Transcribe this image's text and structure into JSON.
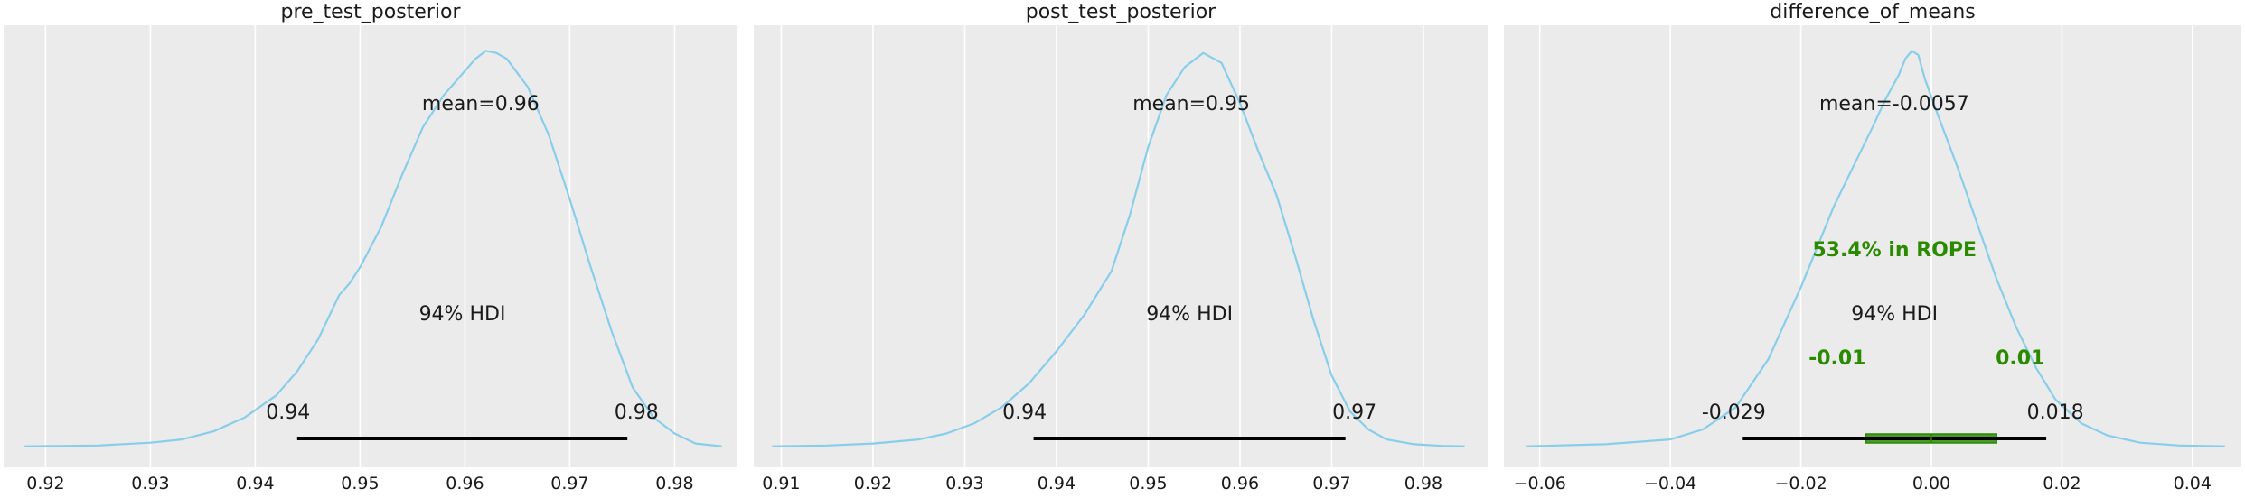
{
  "colors": {
    "panel_bg": "#ebebeb",
    "grid": "#ffffff",
    "density": "#87ceeb",
    "hdi": "#000000",
    "rope": "#2a8a00",
    "rope_fill": "#4a9a2a",
    "text": "#1a1a1a"
  },
  "chart_data": [
    {
      "type": "area",
      "title": "pre_test_posterior",
      "xlim": [
        0.916,
        0.986
      ],
      "xticks": [
        0.92,
        0.93,
        0.94,
        0.95,
        0.96,
        0.97,
        0.98
      ],
      "tick_labels": [
        "0.92",
        "0.93",
        "0.94",
        "0.95",
        "0.96",
        "0.97",
        "0.98"
      ],
      "grid": true,
      "density_x": [
        0.918,
        0.925,
        0.93,
        0.933,
        0.936,
        0.939,
        0.942,
        0.944,
        0.946,
        0.948,
        0.949,
        0.95,
        0.952,
        0.954,
        0.956,
        0.958,
        0.96,
        0.961,
        0.962,
        0.963,
        0.964,
        0.966,
        0.968,
        0.97,
        0.972,
        0.974,
        0.976,
        0.978,
        0.98,
        0.982,
        0.9845
      ],
      "density_y": [
        0.003,
        0.005,
        0.012,
        0.02,
        0.04,
        0.075,
        0.13,
        0.19,
        0.27,
        0.38,
        0.41,
        0.45,
        0.55,
        0.68,
        0.8,
        0.88,
        0.94,
        0.97,
        0.99,
        0.985,
        0.97,
        0.9,
        0.78,
        0.62,
        0.45,
        0.29,
        0.15,
        0.075,
        0.035,
        0.01,
        0.003
      ],
      "mean_label": "mean=0.96",
      "mean_label_x": 0.9615,
      "hdi": [
        0.944,
        0.9755
      ],
      "hdi_label": "94% HDI",
      "hdi_labels": [
        "0.94",
        "0.98"
      ]
    },
    {
      "type": "area",
      "title": "post_test_posterior",
      "xlim": [
        0.907,
        0.987
      ],
      "xticks": [
        0.91,
        0.92,
        0.93,
        0.94,
        0.95,
        0.96,
        0.97,
        0.98
      ],
      "tick_labels": [
        "0.91",
        "0.92",
        "0.93",
        "0.94",
        "0.95",
        "0.96",
        "0.97",
        "0.98"
      ],
      "grid": true,
      "density_x": [
        0.909,
        0.915,
        0.92,
        0.925,
        0.928,
        0.931,
        0.934,
        0.937,
        0.94,
        0.943,
        0.946,
        0.948,
        0.95,
        0.952,
        0.954,
        0.956,
        0.958,
        0.96,
        0.962,
        0.964,
        0.966,
        0.968,
        0.97,
        0.972,
        0.974,
        0.976,
        0.979,
        0.982,
        0.9845
      ],
      "density_y": [
        0.003,
        0.005,
        0.01,
        0.02,
        0.035,
        0.06,
        0.1,
        0.16,
        0.24,
        0.33,
        0.44,
        0.58,
        0.75,
        0.88,
        0.95,
        0.985,
        0.96,
        0.86,
        0.74,
        0.63,
        0.48,
        0.32,
        0.18,
        0.09,
        0.045,
        0.02,
        0.008,
        0.004,
        0.003
      ],
      "mean_label": "mean=0.95",
      "mean_label_x": 0.9547,
      "hdi": [
        0.9375,
        0.9715
      ],
      "hdi_label": "94% HDI",
      "hdi_labels": [
        "0.94",
        "0.97"
      ]
    },
    {
      "type": "area",
      "title": "difference_of_means",
      "xlim": [
        -0.0655,
        0.0475
      ],
      "xticks": [
        -0.06,
        -0.04,
        -0.02,
        0.0,
        0.02,
        0.04
      ],
      "tick_labels": [
        "−0.06",
        "−0.04",
        "−0.02",
        "0.00",
        "0.02",
        "0.04"
      ],
      "grid": true,
      "density_x": [
        -0.062,
        -0.05,
        -0.04,
        -0.035,
        -0.03,
        -0.025,
        -0.02,
        -0.015,
        -0.012,
        -0.009,
        -0.007,
        -0.005,
        -0.004,
        -0.003,
        -0.002,
        -0.001,
        0.001,
        0.004,
        0.007,
        0.01,
        0.013,
        0.016,
        0.019,
        0.023,
        0.027,
        0.032,
        0.038,
        0.045
      ],
      "density_y": [
        0.003,
        0.008,
        0.02,
        0.045,
        0.1,
        0.22,
        0.4,
        0.6,
        0.7,
        0.8,
        0.87,
        0.93,
        0.97,
        0.99,
        0.98,
        0.92,
        0.83,
        0.7,
        0.56,
        0.42,
        0.3,
        0.2,
        0.12,
        0.06,
        0.03,
        0.012,
        0.005,
        0.003
      ],
      "mean_label": "mean=-0.0057",
      "mean_label_x": -0.0057,
      "hdi": [
        -0.0289,
        0.0176
      ],
      "hdi_label": "94% HDI",
      "hdi_labels": [
        "-0.029",
        "0.018"
      ],
      "rope": [
        -0.01,
        0.01
      ],
      "rope_label": "53.4% in ROPE",
      "rope_labels": [
        "-0.01",
        "0.01"
      ]
    }
  ]
}
